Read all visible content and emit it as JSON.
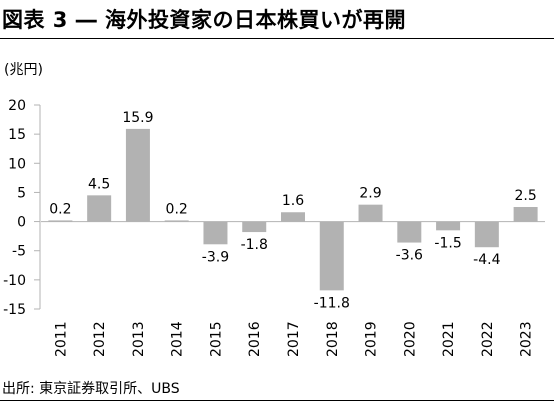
{
  "title": "図表 3 ― 海外投資家の日本株買いが再開",
  "unit_label": "(兆円)",
  "source": "出所: 東京証券取引所、UBS",
  "chart_data": {
    "type": "bar",
    "title": "図表 3 ― 海外投資家の日本株買いが再開",
    "ylabel": "(兆円)",
    "xlabel": "",
    "categories": [
      "2011",
      "2012",
      "2013",
      "2014",
      "2015",
      "2016",
      "2017",
      "2018",
      "2019",
      "2020",
      "2021",
      "2022",
      "2023"
    ],
    "values": [
      0.2,
      4.5,
      15.9,
      0.2,
      -3.9,
      -1.8,
      1.6,
      -11.8,
      2.9,
      -3.6,
      -1.5,
      -4.4,
      2.5
    ],
    "data_labels": [
      "0.2",
      "4.5",
      "15.9",
      "0.2",
      "-3.9",
      "-1.8",
      "1.6",
      "-11.8",
      "2.9",
      "-3.6",
      "-1.5",
      "-4.4",
      "2.5"
    ],
    "y_ticks": [
      20,
      15,
      10,
      5,
      0,
      -5,
      -10,
      -15
    ],
    "y_tick_labels": [
      "20",
      "15",
      "10",
      "5",
      "0",
      "-5",
      "-10",
      "-15"
    ],
    "ylim": [
      -15,
      20
    ],
    "grid": false,
    "legend": "none",
    "bar_color": "#b2b2b2"
  }
}
